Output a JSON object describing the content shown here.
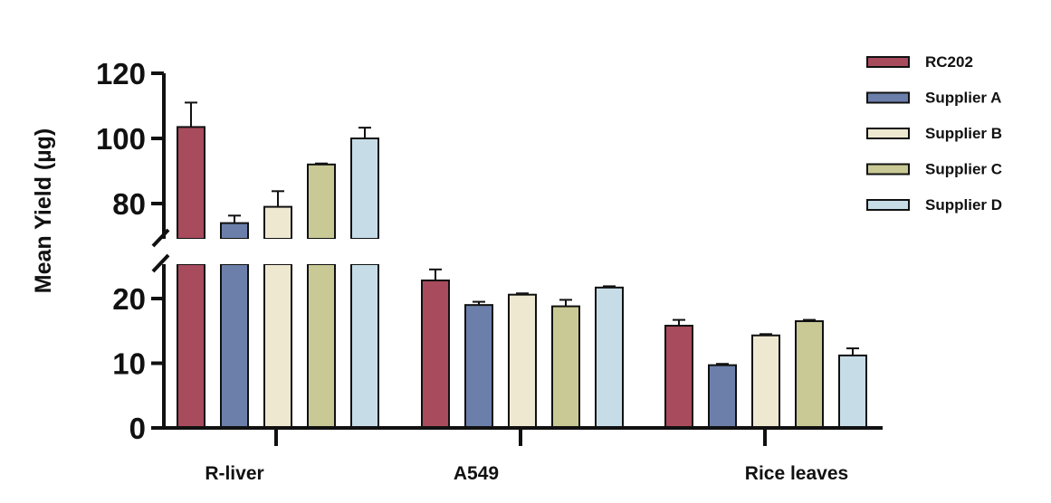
{
  "chart_data": {
    "type": "bar",
    "title": "",
    "xlabel": "",
    "ylabel": "Mean Yield (µg)",
    "y_axis_break": [
      25,
      70
    ],
    "ylim": [
      0,
      120
    ],
    "y_ticks_lower": [
      0,
      10,
      20
    ],
    "y_ticks_upper": [
      80,
      100,
      120
    ],
    "categories": [
      "R-liver",
      "A549",
      "Rice leaves"
    ],
    "legend_position": "top-right",
    "grid": false,
    "series": [
      {
        "name": "RC202",
        "color": "#a84b5d",
        "values": [
          103.5,
          22.8,
          15.8
        ],
        "errors": [
          7.5,
          1.7,
          0.9
        ]
      },
      {
        "name": "Supplier A",
        "color": "#6b7faa",
        "values": [
          74.0,
          19.0,
          9.7
        ],
        "errors": [
          2.3,
          0.5,
          0.2
        ]
      },
      {
        "name": "Supplier B",
        "color": "#efe8d1",
        "values": [
          79.0,
          20.6,
          14.3
        ],
        "errors": [
          4.8,
          0.2,
          0.2
        ]
      },
      {
        "name": "Supplier C",
        "color": "#c9c995",
        "values": [
          92.0,
          18.8,
          16.5
        ],
        "errors": [
          0.3,
          1.0,
          0.2
        ]
      },
      {
        "name": "Supplier D",
        "color": "#c6dde8",
        "values": [
          100.0,
          21.7,
          11.2
        ],
        "errors": [
          3.3,
          0.2,
          1.1
        ]
      }
    ]
  }
}
